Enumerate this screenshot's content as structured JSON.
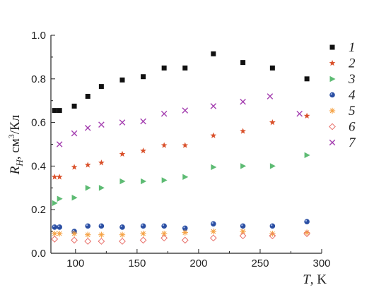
{
  "chart_data": {
    "type": "scatter",
    "xlabel": {
      "var": "T",
      "unit": ", K"
    },
    "ylabel": {
      "var": "R",
      "sub": "H",
      "unit": ", см",
      "sup": "3",
      "unit2": "/Кл"
    },
    "xlim": [
      80,
      300
    ],
    "ylim": [
      0.0,
      1.0
    ],
    "xticks": [
      100,
      150,
      200,
      250,
      300
    ],
    "yticks": [
      0.0,
      0.2,
      0.4,
      0.6,
      0.8,
      1.0
    ],
    "xtick_labels": [
      "100",
      "150",
      "200",
      "250",
      "300"
    ],
    "ytick_labels": [
      "0.0",
      "0.2",
      "0.4",
      "0.6",
      "0.8",
      "1.0"
    ],
    "legend_position": "right",
    "series": [
      {
        "name": "1",
        "marker": "square",
        "color": "#111111",
        "x": [
          83,
          87,
          99,
          110,
          121,
          138,
          155,
          172,
          189,
          212,
          236,
          260,
          288
        ],
        "y": [
          0.655,
          0.655,
          0.675,
          0.72,
          0.765,
          0.795,
          0.81,
          0.85,
          0.85,
          0.915,
          0.875,
          0.85,
          0.8
        ]
      },
      {
        "name": "2",
        "marker": "star",
        "color": "#d9502a",
        "x": [
          83,
          87,
          99,
          110,
          121,
          138,
          155,
          172,
          189,
          212,
          236,
          260,
          288
        ],
        "y": [
          0.35,
          0.35,
          0.395,
          0.405,
          0.415,
          0.455,
          0.47,
          0.495,
          0.495,
          0.54,
          0.56,
          0.6,
          0.63
        ]
      },
      {
        "name": "3",
        "marker": "triangle-right",
        "color": "#5dbb73",
        "x": [
          83,
          87,
          99,
          110,
          121,
          138,
          155,
          172,
          189,
          212,
          236,
          260,
          288
        ],
        "y": [
          0.23,
          0.25,
          0.255,
          0.3,
          0.3,
          0.33,
          0.33,
          0.335,
          0.35,
          0.395,
          0.4,
          0.4,
          0.45
        ]
      },
      {
        "name": "4",
        "marker": "circle",
        "color": "#2b4fa3",
        "x": [
          83,
          87,
          99,
          110,
          121,
          138,
          155,
          172,
          189,
          212,
          236,
          260,
          288
        ],
        "y": [
          0.12,
          0.12,
          0.1,
          0.125,
          0.125,
          0.12,
          0.125,
          0.125,
          0.115,
          0.135,
          0.125,
          0.125,
          0.145
        ]
      },
      {
        "name": "5",
        "marker": "asterisk",
        "color": "#f5a142",
        "x": [
          83,
          87,
          99,
          110,
          121,
          138,
          155,
          172,
          189,
          212,
          236,
          260,
          288
        ],
        "y": [
          0.09,
          0.09,
          0.09,
          0.085,
          0.085,
          0.085,
          0.09,
          0.09,
          0.095,
          0.1,
          0.1,
          0.09,
          0.095
        ]
      },
      {
        "name": "6",
        "marker": "diamond-open",
        "color": "#e8706a",
        "x": [
          83,
          99,
          110,
          121,
          138,
          155,
          172,
          189,
          212,
          236,
          260,
          288
        ],
        "y": [
          0.065,
          0.06,
          0.055,
          0.055,
          0.055,
          0.06,
          0.07,
          0.06,
          0.07,
          0.08,
          0.08,
          0.09
        ]
      },
      {
        "name": "7",
        "marker": "x",
        "color": "#a43fb0",
        "x": [
          87,
          99,
          110,
          121,
          138,
          155,
          172,
          189,
          212,
          236,
          258,
          282
        ],
        "y": [
          0.5,
          0.55,
          0.575,
          0.59,
          0.6,
          0.605,
          0.64,
          0.655,
          0.675,
          0.695,
          0.72,
          0.64
        ]
      }
    ]
  }
}
